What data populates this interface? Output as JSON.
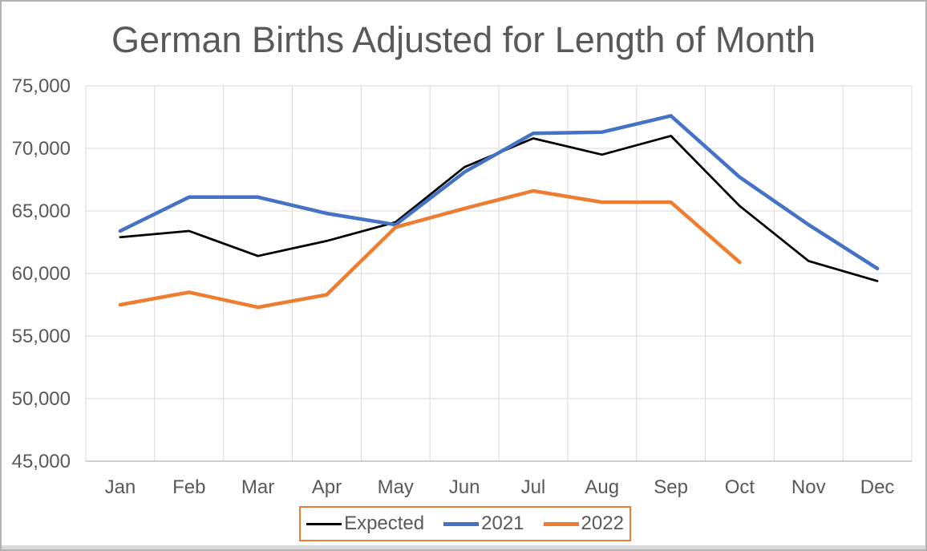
{
  "title": "German Births Adjusted for Length of Month",
  "chart_data": {
    "type": "line",
    "title": "German Births Adjusted for Length of Month",
    "categories": [
      "Jan",
      "Feb",
      "Mar",
      "Apr",
      "May",
      "Jun",
      "Jul",
      "Aug",
      "Sep",
      "Oct",
      "Nov",
      "Dec"
    ],
    "series": [
      {
        "name": "Expected",
        "color": "#000000",
        "line_width": 2.75,
        "values": [
          62900,
          63400,
          61400,
          62600,
          64100,
          68500,
          70800,
          69500,
          71000,
          65400,
          61000,
          59400
        ]
      },
      {
        "name": "2021",
        "color": "#4472C4",
        "line_width": 4.5,
        "values": [
          63400,
          66100,
          66100,
          64800,
          63900,
          68100,
          71200,
          71300,
          72600,
          67700,
          63900,
          60400
        ]
      },
      {
        "name": "2022",
        "color": "#ED7D31",
        "line_width": 4.5,
        "values": [
          57500,
          58500,
          57300,
          58300,
          63700,
          65200,
          66600,
          65700,
          65700,
          60900,
          null,
          null
        ]
      }
    ],
    "y_axis": {
      "min": 45000,
      "max": 75000,
      "step": 5000,
      "tick_labels": [
        "75,000",
        "70,000",
        "65,000",
        "60,000",
        "55,000",
        "50,000",
        "45,000"
      ]
    },
    "grid": true,
    "gridline_color": "#d9d9d9",
    "axis_line_color": "#bfbfbf",
    "text_color": "#595959",
    "legend_position": "bottom",
    "legend_border_color": "#ED7D31"
  },
  "frame": {
    "background": "#ffffff",
    "border_color": "#b3b3b3",
    "bottom_strip_color": "#d9d9d9"
  }
}
